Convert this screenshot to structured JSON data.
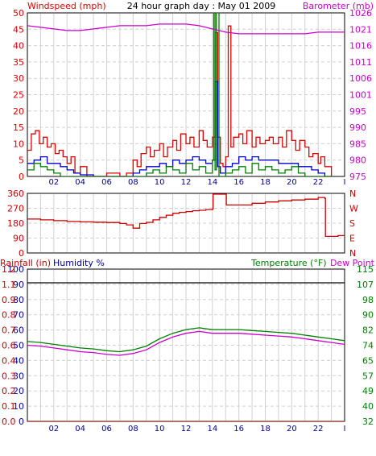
{
  "title": "24 hour graph day : May 01 2009",
  "colors": {
    "wind": "#dd0000",
    "gust": "#008000",
    "avg": "#0000cc",
    "baro": "#cc00cc",
    "dir": "#cc0000",
    "rain_label": "#cc0000",
    "humidity_label": "#000099",
    "temp_label": "#008000",
    "dew_label": "#cc00cc",
    "temp": "#008000",
    "dew": "#cc00cc",
    "rain_line": "#cc0000",
    "ref_line": "#000000",
    "grid": "#d0d0d0",
    "xtick": "#000099"
  },
  "chart_data": [
    {
      "type": "line",
      "name": "wind-barometer",
      "title": "24 hour graph day : May 01 2009",
      "ylabel_left": "Windspeed (mph)",
      "ylabel_right": "Barometer (mb)",
      "ylim_left": [
        0,
        50
      ],
      "ylim_right": [
        975,
        1026
      ],
      "yticks_left": [
        "0",
        "5",
        "10",
        "15",
        "20",
        "25",
        "30",
        "35",
        "40",
        "45",
        "50"
      ],
      "yticks_right": [
        "975",
        "980",
        "985",
        "990",
        "995",
        "1001",
        "1006",
        "1011",
        "1016",
        "1021",
        "1026"
      ],
      "xlim": [
        0,
        24
      ],
      "xticks": [
        {
          "x": 2,
          "label": "02"
        },
        {
          "x": 4,
          "label": "04"
        },
        {
          "x": 6,
          "label": "06"
        },
        {
          "x": 8,
          "label": "08"
        },
        {
          "x": 10,
          "label": "10"
        },
        {
          "x": 12,
          "label": "12"
        },
        {
          "x": 14,
          "label": "14"
        },
        {
          "x": 16,
          "label": "16"
        },
        {
          "x": 18,
          "label": "18"
        },
        {
          "x": 20,
          "label": "20"
        },
        {
          "x": 22,
          "label": "22"
        },
        {
          "x": 24,
          "label": "I"
        }
      ],
      "grid": true,
      "series": [
        {
          "key": "gust",
          "color_key": "wind",
          "x": [
            0,
            0.3,
            0.6,
            0.9,
            1.2,
            1.5,
            1.8,
            2.1,
            2.4,
            2.7,
            3.0,
            3.3,
            3.6,
            4,
            4.5,
            5,
            6,
            7,
            7.5,
            8,
            8.3,
            8.6,
            9,
            9.3,
            9.6,
            10,
            10.3,
            10.6,
            11,
            11.3,
            11.6,
            12,
            12.3,
            12.6,
            13,
            13.3,
            13.6,
            14,
            14.2,
            14.4,
            14.6,
            14.8,
            15,
            15.2,
            15.4,
            15.6,
            16,
            16.3,
            16.6,
            17,
            17.3,
            17.6,
            18,
            18.3,
            18.6,
            19,
            19.3,
            19.6,
            20,
            20.3,
            20.6,
            21,
            21.3,
            21.6,
            22,
            22.2,
            22.5,
            23
          ],
          "y": [
            8,
            13,
            14,
            10,
            12,
            9,
            10,
            7,
            8,
            6,
            4,
            6,
            1,
            3,
            0,
            0,
            1,
            0,
            1,
            5,
            3,
            7,
            9,
            6,
            8,
            10,
            6,
            9,
            11,
            8,
            13,
            10,
            12,
            9,
            14,
            11,
            9,
            12,
            44,
            12,
            4,
            3,
            6,
            46,
            9,
            12,
            13,
            10,
            14,
            9,
            12,
            10,
            11,
            12,
            10,
            12,
            9,
            14,
            11,
            8,
            11,
            9,
            6,
            7,
            4,
            6,
            3,
            0
          ]
        },
        {
          "key": "avg",
          "color_key": "avg",
          "x": [
            0,
            0.5,
            1,
            1.5,
            2,
            2.5,
            3,
            3.5,
            4,
            5,
            6,
            7,
            8,
            8.5,
            9,
            9.5,
            10,
            10.5,
            11,
            11.5,
            12,
            12.5,
            13,
            13.5,
            14,
            14.2,
            14.4,
            14.6,
            15,
            15.5,
            16,
            16.5,
            17,
            17.5,
            18,
            18.5,
            19,
            19.5,
            20,
            20.5,
            21,
            21.5,
            22,
            22.5,
            23
          ],
          "y": [
            4,
            5,
            6,
            4,
            4,
            3,
            2,
            1,
            0.5,
            0,
            0,
            0,
            1,
            2,
            3,
            3,
            4,
            3,
            5,
            4,
            5,
            6,
            5,
            4,
            5,
            29,
            3,
            1,
            3,
            4,
            6,
            5,
            6,
            5,
            5,
            5,
            4,
            4,
            4,
            3,
            3,
            2,
            1,
            0,
            0
          ]
        },
        {
          "key": "gust2",
          "color_key": "gust",
          "x": [
            0,
            0.5,
            1,
            1.5,
            2,
            2.5,
            3,
            4,
            6,
            8,
            9,
            9.5,
            10,
            10.5,
            11,
            11.5,
            12,
            12.5,
            13,
            13.5,
            14,
            14.1,
            14.2,
            14.3,
            14.5,
            15,
            15.5,
            16,
            16.5,
            17,
            17.5,
            18,
            18.5,
            19,
            19.5,
            20,
            20.5,
            21,
            22,
            23
          ],
          "y": [
            2,
            4,
            3,
            2,
            1,
            0,
            0,
            0,
            0,
            0,
            1,
            2,
            1,
            3,
            2,
            1,
            4,
            2,
            3,
            1,
            5,
            50,
            2,
            50,
            0,
            1,
            2,
            3,
            1,
            4,
            2,
            3,
            2,
            1,
            2,
            3,
            1,
            0,
            0,
            0
          ]
        },
        {
          "key": "baro",
          "color_key": "baro",
          "axis": "right",
          "x": [
            0,
            1,
            2,
            3,
            4,
            5,
            6,
            7,
            8,
            9,
            10,
            11,
            12,
            13,
            14,
            15,
            16,
            17,
            18,
            19,
            20,
            21,
            22,
            23,
            24
          ],
          "y": [
            1022,
            1021.5,
            1021,
            1020.5,
            1020.5,
            1021,
            1021.5,
            1022,
            1022,
            1022,
            1022.5,
            1022.5,
            1022.5,
            1022,
            1021,
            1020,
            1019.5,
            1019.5,
            1019.5,
            1019.5,
            1019.5,
            1019.5,
            1020,
            1020,
            1020
          ]
        }
      ]
    },
    {
      "type": "line",
      "name": "wind-direction",
      "ylim": [
        0,
        360
      ],
      "yticks_left": [
        "0",
        "90",
        "180",
        "270",
        "360"
      ],
      "yticks_right": [
        "N",
        "E",
        "S",
        "W",
        "N"
      ],
      "xlim": [
        0,
        24
      ],
      "grid": true,
      "series": [
        {
          "key": "dir",
          "color_key": "dir",
          "x": [
            0,
            1,
            2,
            3,
            4,
            5,
            6,
            7,
            7.5,
            8,
            8.5,
            9,
            9.5,
            10,
            10.5,
            11,
            11.5,
            12,
            12.5,
            13,
            13.5,
            14,
            14.05,
            15,
            15.05,
            16,
            17,
            18,
            19,
            20,
            21,
            22,
            22.5,
            22.55,
            23,
            23.5,
            24
          ],
          "y": [
            205,
            200,
            195,
            190,
            188,
            186,
            184,
            178,
            170,
            150,
            178,
            185,
            200,
            215,
            228,
            240,
            245,
            250,
            255,
            258,
            262,
            265,
            355,
            355,
            290,
            290,
            300,
            308,
            315,
            320,
            325,
            335,
            330,
            100,
            100,
            105,
            125
          ]
        }
      ]
    },
    {
      "type": "line",
      "name": "temperature-humidity",
      "legend": [
        "Rainfall (in)",
        "Humidity %",
        "Temperature (°F)",
        "Dew Point"
      ],
      "ylim_left": [
        0,
        100
      ],
      "ylim_right": [
        32,
        115
      ],
      "yticks_left": [
        "0",
        "10",
        "20",
        "30",
        "40",
        "50",
        "60",
        "70",
        "80",
        "90",
        "100"
      ],
      "yticks_rain": [
        "0.0",
        "0.1",
        "0.2",
        "0.3",
        "0.4",
        "0.6",
        "0.7",
        "0.8",
        "0.9",
        "1.1",
        "1.2"
      ],
      "yticks_right": [
        "32",
        "40",
        "49",
        "57",
        "65",
        "74",
        "82",
        "90",
        "98",
        "107",
        "115"
      ],
      "xlim": [
        0,
        24
      ],
      "grid": true,
      "series": [
        {
          "key": "temp",
          "color_key": "temp",
          "axis": "right",
          "x": [
            0,
            1,
            2,
            3,
            4,
            5,
            6,
            7,
            8,
            9,
            10,
            11,
            12,
            13,
            14,
            15,
            16,
            17,
            18,
            19,
            20,
            21,
            22,
            23,
            24
          ],
          "y": [
            75.5,
            75,
            74,
            73,
            72,
            71.5,
            70.5,
            70,
            71,
            73,
            77,
            80,
            82,
            83,
            82,
            82,
            82,
            81.5,
            81,
            80.5,
            80,
            79,
            78,
            77,
            76
          ]
        },
        {
          "key": "dew",
          "color_key": "dew",
          "axis": "right",
          "x": [
            0,
            1,
            2,
            3,
            4,
            5,
            6,
            7,
            8,
            9,
            10,
            11,
            12,
            13,
            14,
            15,
            16,
            17,
            18,
            19,
            20,
            21,
            22,
            23,
            24
          ],
          "y": [
            73.5,
            73,
            72,
            71,
            70,
            69.5,
            68.5,
            68,
            69,
            71,
            75,
            78,
            80,
            81,
            80,
            80,
            80,
            79.5,
            79,
            78.5,
            78,
            77,
            76,
            75,
            74
          ]
        },
        {
          "key": "ref",
          "color_key": "ref_line",
          "axis": "left",
          "x": [
            0,
            24
          ],
          "y": [
            91,
            91
          ]
        },
        {
          "key": "rain",
          "color_key": "rain_line",
          "axis": "left",
          "x": [
            0,
            24
          ],
          "y": [
            0,
            0
          ]
        }
      ]
    }
  ]
}
